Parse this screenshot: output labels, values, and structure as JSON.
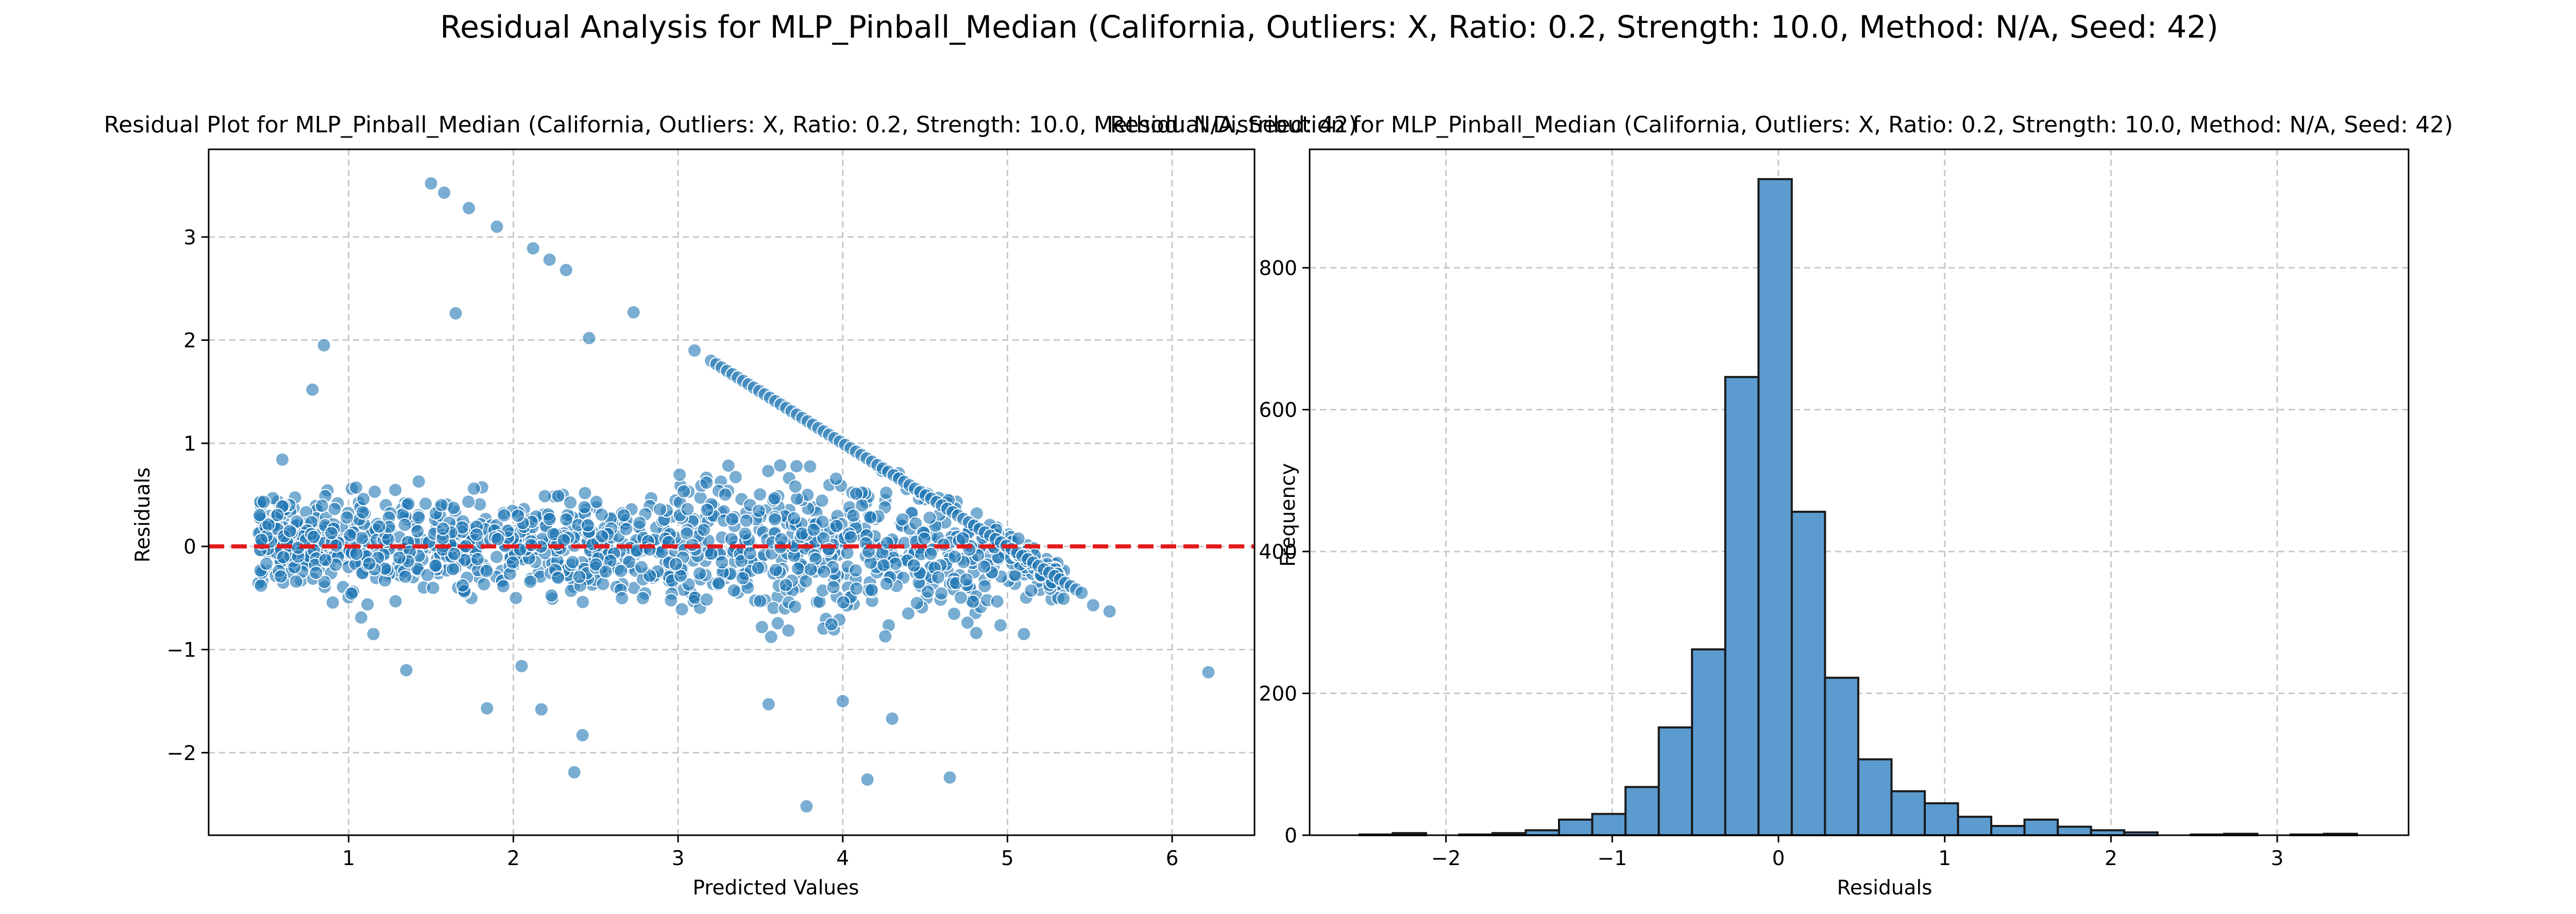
{
  "suptitle": "Residual Analysis for MLP_Pinball_Median (California, Outliers: X, Ratio: 0.2, Strength: 10.0, Method: N/A, Seed: 42)",
  "colors": {
    "point": "#1f77b4",
    "bar": "#5b9bd0",
    "zero_line": "#e31a1c",
    "grid": "#c8c8c8"
  },
  "chart_data": [
    {
      "type": "scatter",
      "title": "Residual Plot for MLP_Pinball_Median (California, Outliers: X, Ratio: 0.2, Strength: 10.0, Method: N/A, Seed: 42)",
      "xlabel": "Predicted Values",
      "ylabel": "Residuals",
      "xlim": [
        0.15,
        6.5
      ],
      "ylim": [
        -2.8,
        3.85
      ],
      "xticks": [
        1,
        2,
        3,
        4,
        5,
        6
      ],
      "yticks": [
        -2,
        -1,
        0,
        1,
        2,
        3
      ],
      "grid": true,
      "reference_line": {
        "y": 0,
        "style": "dashed",
        "color": "red"
      },
      "outlier_points": [
        {
          "x": 1.5,
          "y": 3.52
        },
        {
          "x": 1.58,
          "y": 3.43
        },
        {
          "x": 1.73,
          "y": 3.28
        },
        {
          "x": 1.9,
          "y": 3.1
        },
        {
          "x": 2.12,
          "y": 2.89
        },
        {
          "x": 2.22,
          "y": 2.78
        },
        {
          "x": 2.32,
          "y": 2.68
        },
        {
          "x": 1.65,
          "y": 2.26
        },
        {
          "x": 2.73,
          "y": 2.27
        },
        {
          "x": 0.85,
          "y": 1.95
        },
        {
          "x": 0.78,
          "y": 1.52
        },
        {
          "x": 2.46,
          "y": 2.02
        },
        {
          "x": 3.1,
          "y": 1.9
        },
        {
          "x": 6.22,
          "y": -1.22
        },
        {
          "x": 3.78,
          "y": -2.52
        },
        {
          "x": 2.37,
          "y": -2.19
        },
        {
          "x": 4.65,
          "y": -2.24
        },
        {
          "x": 4.15,
          "y": -2.26
        },
        {
          "x": 2.42,
          "y": -1.83
        },
        {
          "x": 4.3,
          "y": -1.67
        },
        {
          "x": 2.17,
          "y": -1.58
        },
        {
          "x": 1.84,
          "y": -1.57
        },
        {
          "x": 1.35,
          "y": -1.2
        },
        {
          "x": 5.62,
          "y": -0.63
        },
        {
          "x": 5.52,
          "y": -0.57
        },
        {
          "x": 5.1,
          "y": -0.85
        },
        {
          "x": 3.55,
          "y": -1.53
        },
        {
          "x": 4.0,
          "y": -1.5
        },
        {
          "x": 2.05,
          "y": -1.16
        },
        {
          "x": 1.15,
          "y": -0.85
        }
      ],
      "upper_boundary_line": {
        "x_start": 3.2,
        "x_end": 5.45,
        "y_start": 1.8,
        "y_end": -0.45
      }
    },
    {
      "type": "bar",
      "title": "Residual Distribution for MLP_Pinball_Median (California, Outliers: X, Ratio: 0.2, Strength: 10.0, Method: N/A, Seed: 42)",
      "xlabel": "Residuals",
      "ylabel": "Frequency",
      "xlim": [
        -2.82,
        3.79
      ],
      "ylim": [
        0,
        967
      ],
      "xticks": [
        -2,
        -1,
        0,
        1,
        2,
        3
      ],
      "yticks": [
        0,
        200,
        400,
        600,
        800
      ],
      "grid": true,
      "bin_start": -2.52,
      "bin_width": 0.2,
      "values": [
        1,
        3,
        0,
        1,
        3,
        7,
        22,
        30,
        68,
        152,
        262,
        646,
        925,
        456,
        222,
        107,
        62,
        45,
        26,
        13,
        22,
        12,
        7,
        4,
        0,
        1,
        2,
        0,
        1,
        2
      ]
    }
  ]
}
